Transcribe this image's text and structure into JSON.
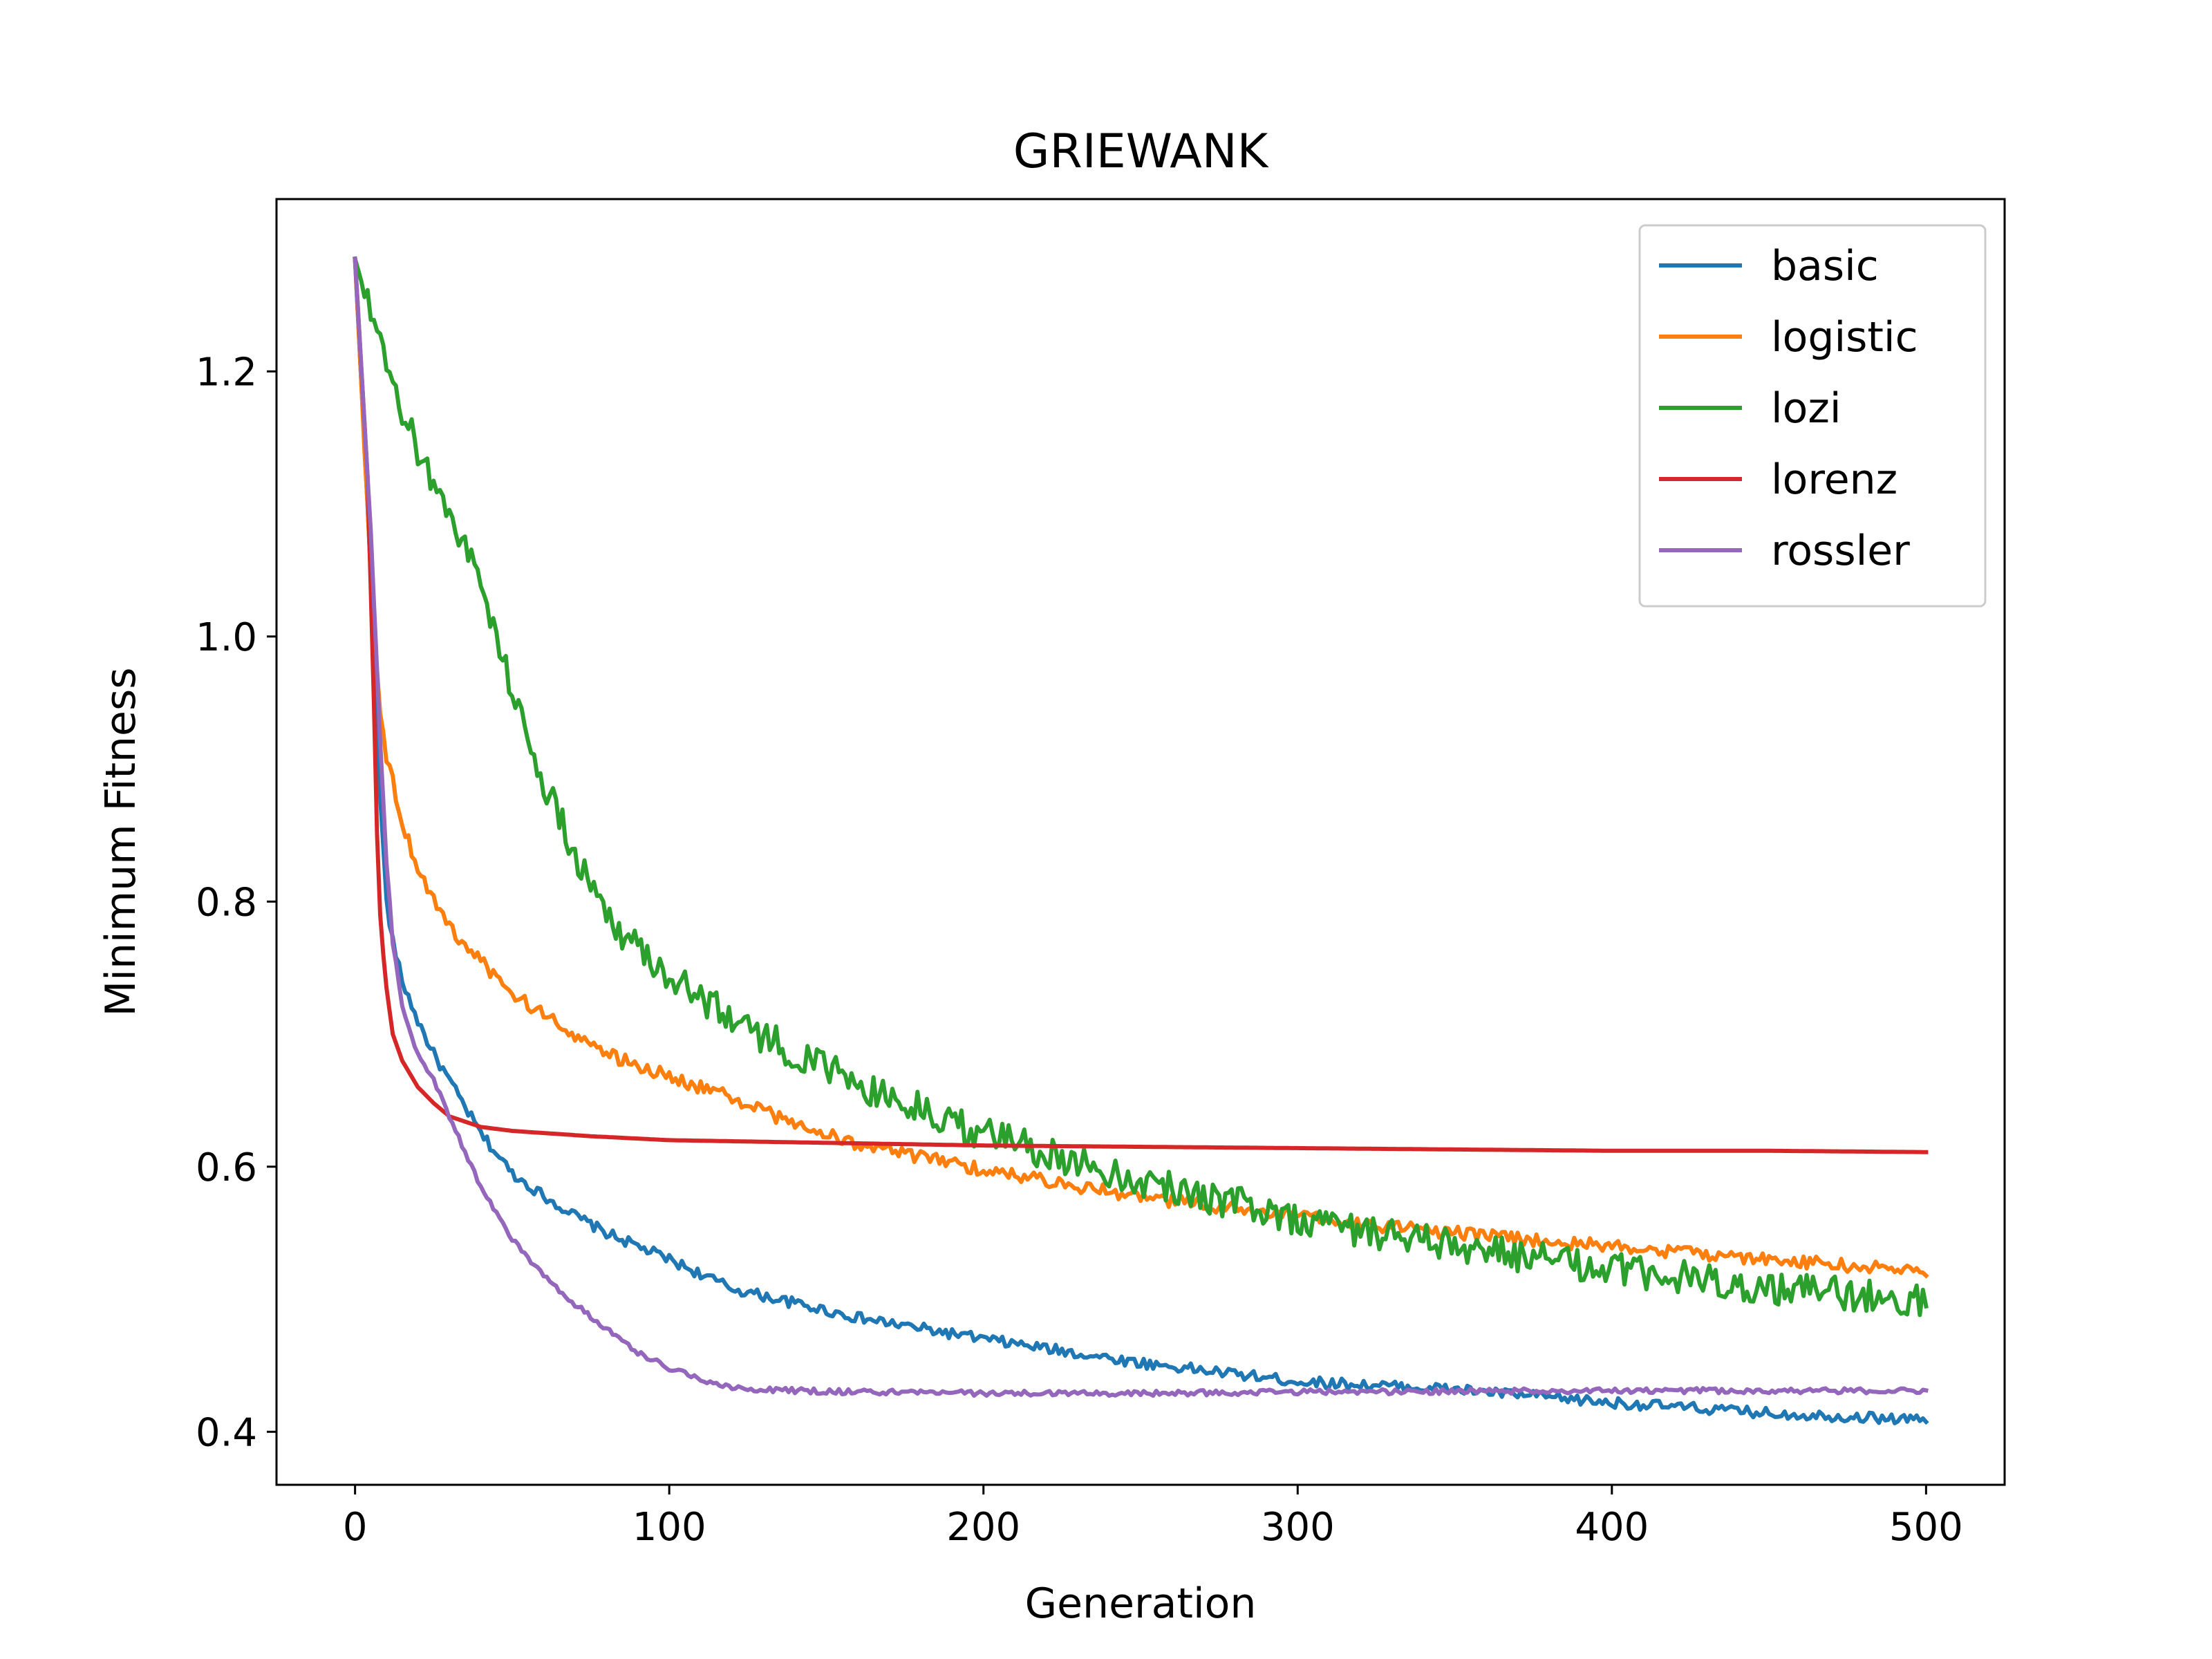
{
  "chart_data": {
    "type": "line",
    "title": "GRIEWANK",
    "xlabel": "Generation",
    "ylabel": "Minimum Fitness",
    "xlim": [
      -25,
      525
    ],
    "ylim": [
      0.36,
      1.33
    ],
    "xticks": [
      0,
      100,
      200,
      300,
      400,
      500
    ],
    "xtick_labels": [
      "0",
      "100",
      "200",
      "300",
      "400",
      "500"
    ],
    "yticks": [
      0.4,
      0.6,
      0.8,
      1.0,
      1.2
    ],
    "ytick_labels": [
      "0.4",
      "0.6",
      "0.8",
      "1.0",
      "1.2"
    ],
    "grid": false,
    "legend_position": "top-right",
    "series": [
      {
        "name": "basic",
        "color": "#1f77b4",
        "x": [
          0,
          5,
          8,
          10,
          12,
          15,
          20,
          25,
          30,
          40,
          50,
          60,
          70,
          80,
          100,
          120,
          140,
          160,
          180,
          200,
          250,
          300,
          350,
          400,
          450,
          500
        ],
        "y": [
          1.285,
          1.05,
          0.88,
          0.8,
          0.77,
          0.74,
          0.71,
          0.685,
          0.665,
          0.625,
          0.595,
          0.578,
          0.563,
          0.55,
          0.53,
          0.508,
          0.497,
          0.486,
          0.478,
          0.47,
          0.452,
          0.438,
          0.432,
          0.422,
          0.414,
          0.409
        ],
        "noise": 0.004
      },
      {
        "name": "logistic",
        "color": "#ff7f0e",
        "x": [
          0,
          5,
          8,
          10,
          15,
          20,
          30,
          40,
          50,
          60,
          70,
          80,
          100,
          120,
          140,
          160,
          180,
          200,
          250,
          300,
          350,
          400,
          450,
          500
        ],
        "y": [
          1.285,
          1.05,
          0.94,
          0.91,
          0.86,
          0.825,
          0.78,
          0.755,
          0.73,
          0.715,
          0.7,
          0.685,
          0.668,
          0.652,
          0.632,
          0.617,
          0.607,
          0.598,
          0.577,
          0.562,
          0.55,
          0.54,
          0.53,
          0.521
        ],
        "noise": 0.005
      },
      {
        "name": "lozi",
        "color": "#2ca02c",
        "x": [
          0,
          10,
          20,
          30,
          40,
          50,
          60,
          70,
          80,
          90,
          100,
          120,
          140,
          160,
          180,
          200,
          250,
          300,
          350,
          400,
          450,
          500
        ],
        "y": [
          1.285,
          1.2,
          1.14,
          1.095,
          1.04,
          0.96,
          0.89,
          0.835,
          0.79,
          0.765,
          0.745,
          0.712,
          0.685,
          0.662,
          0.643,
          0.625,
          0.59,
          0.561,
          0.54,
          0.522,
          0.509,
          0.5
        ],
        "noise": 0.013
      },
      {
        "name": "lorenz",
        "color": "#d62728",
        "x": [
          0,
          4,
          6,
          7,
          8,
          9,
          10,
          12,
          15,
          20,
          25,
          30,
          40,
          50,
          75,
          100,
          150,
          200,
          250,
          300,
          350,
          400,
          450,
          500
        ],
        "y": [
          1.285,
          1.12,
          0.95,
          0.85,
          0.79,
          0.76,
          0.735,
          0.7,
          0.68,
          0.66,
          0.648,
          0.638,
          0.63,
          0.627,
          0.623,
          0.62,
          0.618,
          0.616,
          0.615,
          0.614,
          0.613,
          0.612,
          0.612,
          0.611
        ],
        "noise": 0
      },
      {
        "name": "rossler",
        "color": "#9467bd",
        "x": [
          0,
          5,
          8,
          10,
          12,
          15,
          20,
          25,
          30,
          40,
          50,
          60,
          70,
          80,
          90,
          100,
          110,
          120,
          140,
          160,
          180,
          200,
          250,
          300,
          400,
          500
        ],
        "y": [
          1.285,
          1.08,
          0.92,
          0.83,
          0.77,
          0.72,
          0.685,
          0.665,
          0.638,
          0.585,
          0.545,
          0.518,
          0.496,
          0.478,
          0.46,
          0.448,
          0.44,
          0.433,
          0.431,
          0.43,
          0.43,
          0.429,
          0.429,
          0.43,
          0.431,
          0.431
        ],
        "noise": 0.002
      }
    ]
  }
}
